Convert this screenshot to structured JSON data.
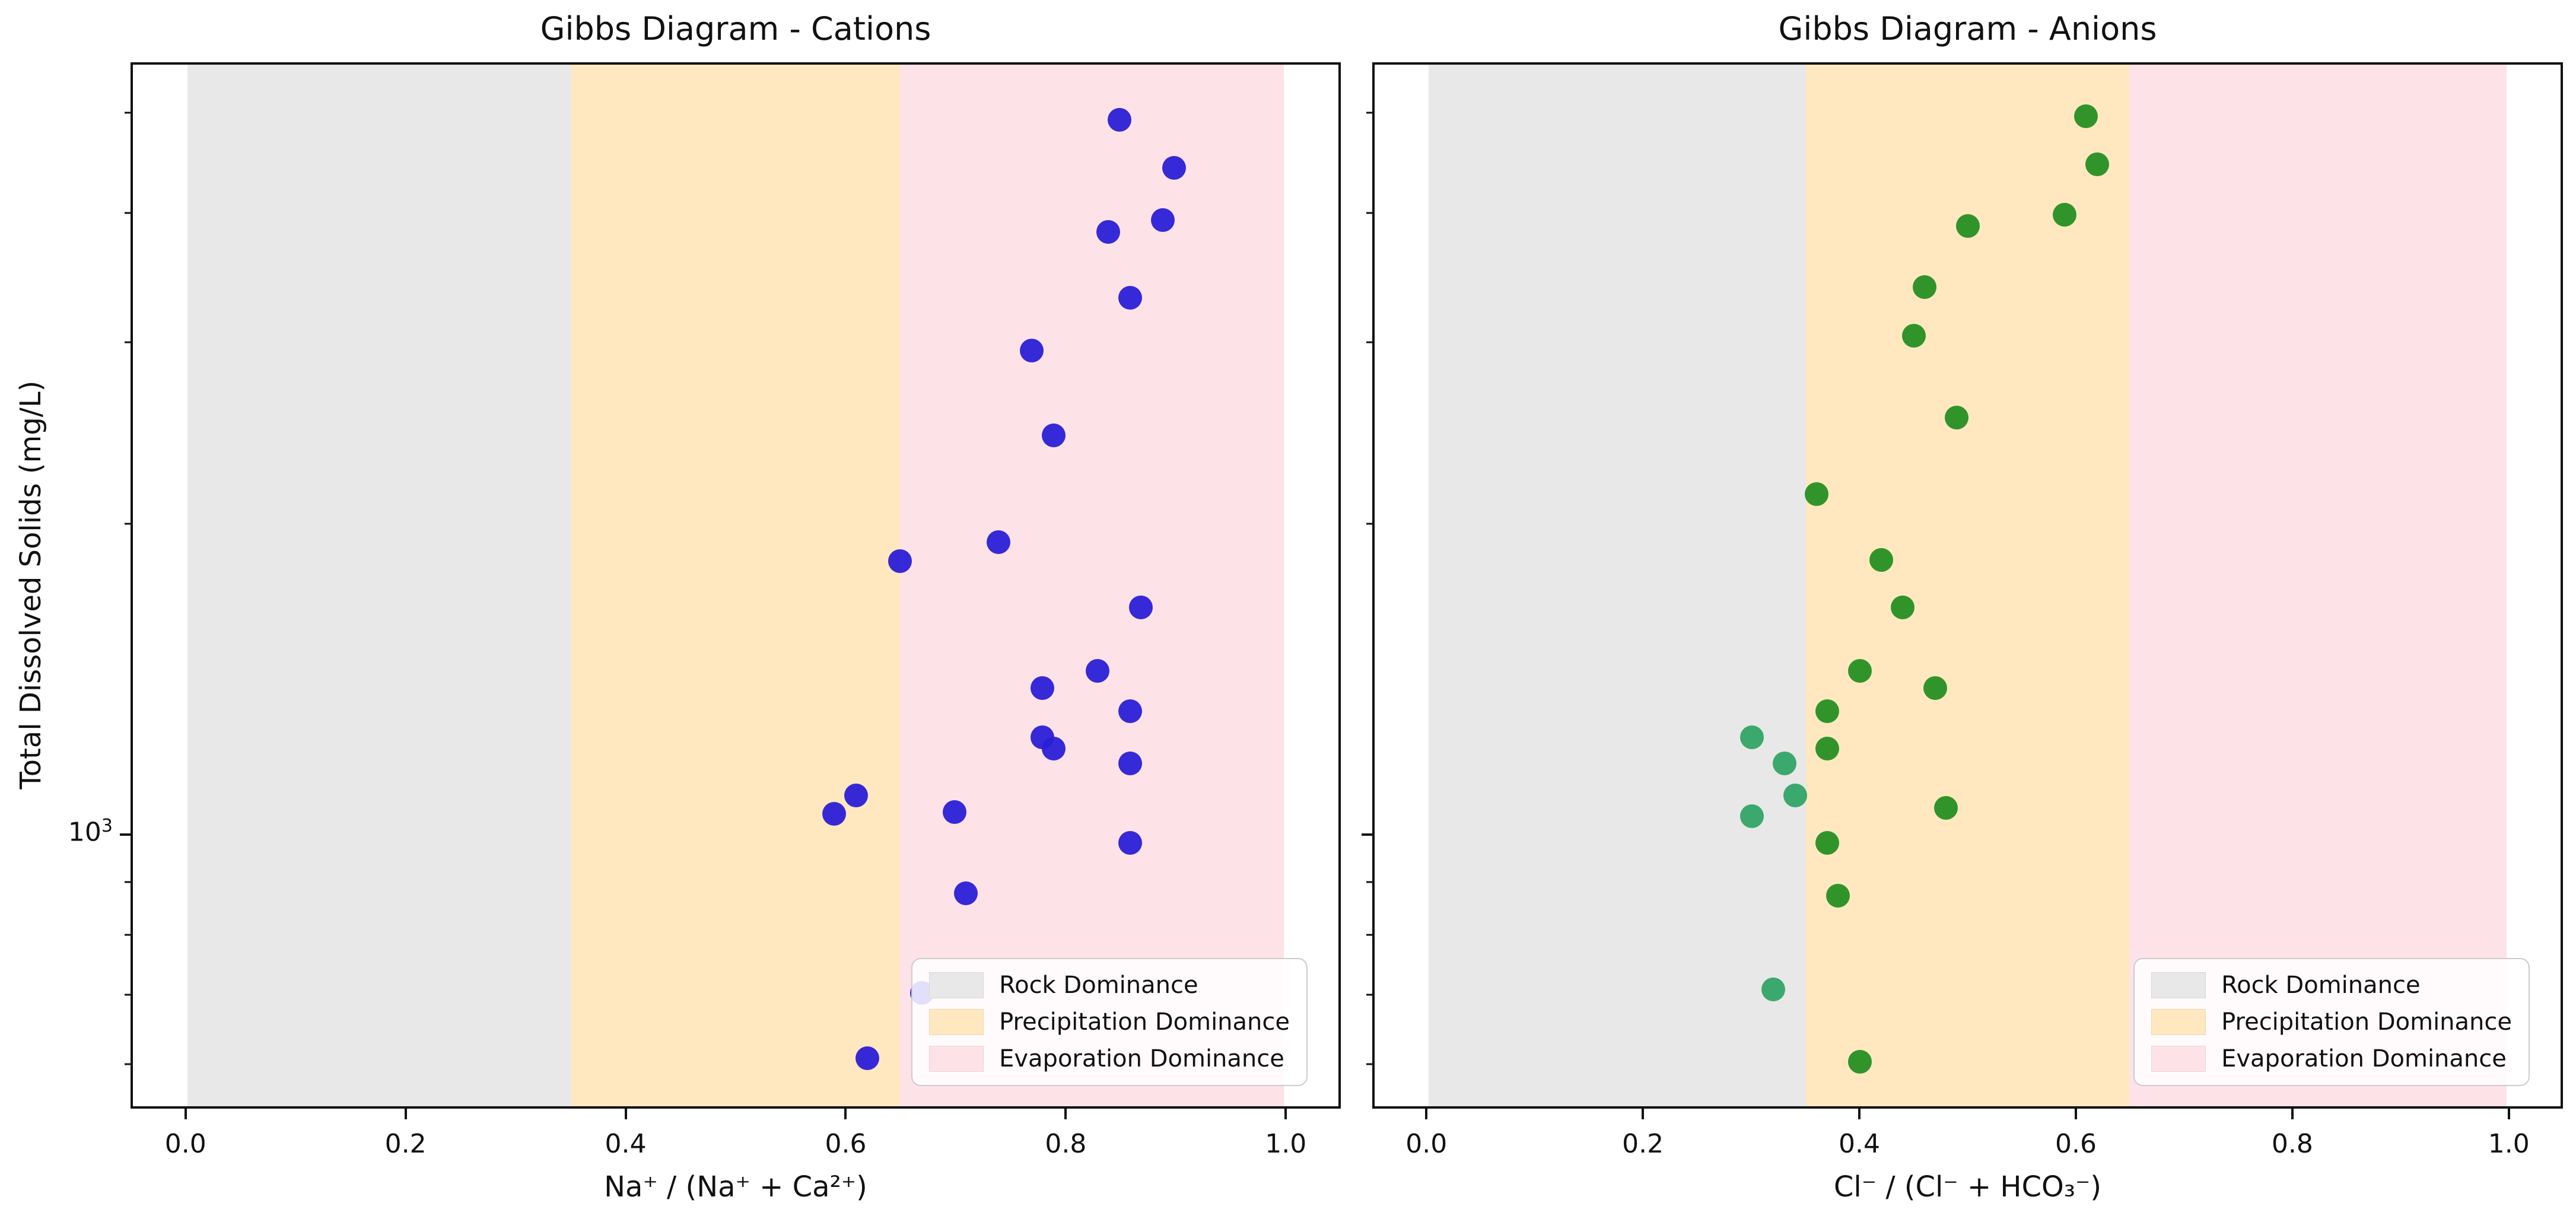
{
  "figure": {
    "background": "#ffffff",
    "ylabel": "Total Dissolved Solids (mg/L)",
    "y_tick_label": "10³",
    "y_tick_label_base": "10",
    "y_tick_label_exp": "3",
    "spine_color": "#111111",
    "zone_fills": {
      "rock": "rgba(180,180,180,0.30)",
      "precipitation": "rgba(255,165,0,0.25)",
      "evaporation": "rgba(247,112,136,0.20)"
    },
    "legend": {
      "entries": [
        {
          "label": "Rock Dominance",
          "swatch": "#e8e8e8"
        },
        {
          "label": "Precipitation Dominance",
          "swatch": "#ffe8bf"
        },
        {
          "label": "Evaporation Dominance",
          "swatch": "#fde2e8"
        }
      ]
    }
  },
  "chart_data": [
    {
      "type": "scatter",
      "title": "Gibbs Diagram - Cations",
      "xlabel": "Na⁺ / (Na⁺ + Ca²⁺)",
      "ylabel": "Total Dissolved Solids (mg/L)",
      "yscale": "log",
      "xlim": [
        -0.05,
        1.05
      ],
      "ylim": [
        543,
        5598
      ],
      "grid": false,
      "x_ticks": [
        0.0,
        0.2,
        0.4,
        0.6,
        0.8,
        1.0
      ],
      "x_tick_labels": [
        "0.0",
        "0.2",
        "0.4",
        "0.6",
        "0.8",
        "1.0"
      ],
      "y_major_ticks": [
        1000
      ],
      "y_minor_ticks": [
        600,
        700,
        800,
        900,
        2000,
        3000,
        4000,
        5000
      ],
      "zones": [
        {
          "label": "Rock Dominance",
          "x_from": 0.0,
          "x_to": 0.35,
          "fill": "rock"
        },
        {
          "label": "Precipitation Dominance",
          "x_from": 0.35,
          "x_to": 0.65,
          "fill": "precipitation"
        },
        {
          "label": "Evaporation Dominance",
          "x_from": 0.65,
          "x_to": 1.0,
          "fill": "evaporation"
        }
      ],
      "legend_position": "lower right",
      "series": [
        {
          "name": "blue",
          "color": "rgba(43,31,214,0.95)",
          "x": [
            0.85,
            0.9,
            0.89,
            0.84,
            0.86,
            0.77,
            0.79,
            0.74,
            0.65,
            0.87,
            0.83,
            0.78,
            0.86,
            0.78,
            0.79,
            0.86,
            0.61,
            0.59,
            0.7,
            0.86,
            0.71,
            0.67,
            0.62
          ],
          "y": [
            4950,
            4440,
            3950,
            3850,
            3320,
            2950,
            2440,
            1920,
            1840,
            1660,
            1440,
            1385,
            1315,
            1240,
            1210,
            1170,
            1090,
            1045,
            1050,
            980,
            875,
            700,
            605
          ]
        }
      ]
    },
    {
      "type": "scatter",
      "title": "Gibbs Diagram - Anions",
      "xlabel": "Cl⁻ / (Cl⁻ + HCO₃⁻)",
      "ylabel": "",
      "yscale": "log",
      "xlim": [
        -0.05,
        1.05
      ],
      "ylim": [
        543,
        5598
      ],
      "grid": false,
      "x_ticks": [
        0.0,
        0.2,
        0.4,
        0.6,
        0.8,
        1.0
      ],
      "x_tick_labels": [
        "0.0",
        "0.2",
        "0.4",
        "0.6",
        "0.8",
        "1.0"
      ],
      "y_major_ticks": [
        1000
      ],
      "y_minor_ticks": [
        600,
        700,
        800,
        900,
        2000,
        3000,
        4000,
        5000
      ],
      "zones": [
        {
          "label": "Rock Dominance",
          "x_from": 0.0,
          "x_to": 0.35,
          "fill": "rock"
        },
        {
          "label": "Precipitation Dominance",
          "x_from": 0.35,
          "x_to": 0.65,
          "fill": "precipitation"
        },
        {
          "label": "Evaporation Dominance",
          "x_from": 0.65,
          "x_to": 1.0,
          "fill": "evaporation"
        }
      ],
      "legend_position": "lower right",
      "series": [
        {
          "name": "green",
          "color": "rgba(30,140,30,0.92)",
          "x": [
            0.61,
            0.62,
            0.59,
            0.5,
            0.46,
            0.45,
            0.49,
            0.36,
            0.42,
            0.44,
            0.4,
            0.47,
            0.37,
            0.37,
            0.48,
            0.37,
            0.38,
            0.4
          ],
          "y": [
            4990,
            4480,
            4000,
            3900,
            3400,
            3050,
            2540,
            2140,
            1845,
            1660,
            1440,
            1385,
            1315,
            1210,
            1060,
            980,
            870,
            600
          ]
        },
        {
          "name": "mediumseagreen",
          "color": "rgba(43,162,98,0.92)",
          "x": [
            0.3,
            0.33,
            0.34,
            0.3,
            0.32
          ],
          "y": [
            1240,
            1170,
            1090,
            1040,
            705
          ]
        }
      ]
    }
  ]
}
